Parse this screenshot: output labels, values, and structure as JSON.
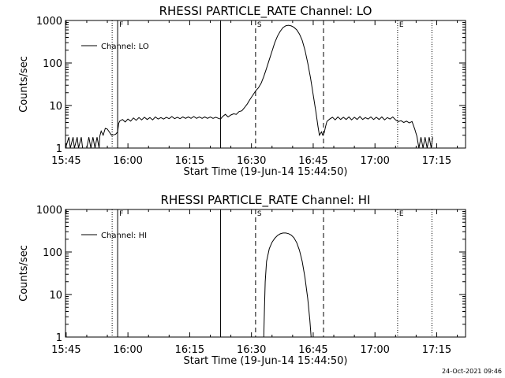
{
  "footer": {
    "timestamp": "24-Oct-2021 09:46"
  },
  "chart_data": [
    {
      "type": "line",
      "title": "RHESSI PARTICLE_RATE Channel: LO",
      "xlabel": "Start Time (19-Jun-14 15:44:50)",
      "ylabel": "Counts/sec",
      "yscale": "log",
      "ylim": [
        1,
        1000
      ],
      "xlim": [
        "15:44:50",
        "17:22:00"
      ],
      "x_ticks": [
        "15:45",
        "16:00",
        "16:15",
        "16:30",
        "16:45",
        "17:00",
        "17:15"
      ],
      "y_ticks": [
        "1",
        "10",
        "100",
        "1000"
      ],
      "legend": {
        "position": "top-left",
        "entries": [
          "Channel: LO"
        ]
      },
      "markers": [
        {
          "label": "F",
          "time": "15:57:30",
          "style": "solid"
        },
        {
          "label": "",
          "time": "16:22:30",
          "style": "solid"
        },
        {
          "label": "S",
          "time": "16:31:00",
          "style": "dashed"
        },
        {
          "label": "",
          "time": "16:47:30",
          "style": "dashed"
        },
        {
          "label": "E",
          "time": "17:05:30",
          "style": "dotted"
        },
        {
          "label": "",
          "time": "15:56:10",
          "style": "dotted"
        },
        {
          "label": "",
          "time": "17:13:50",
          "style": "dotted"
        }
      ],
      "series": [
        {
          "name": "Channel: LO",
          "points": [
            [
              "15:44:50",
              1.0
            ],
            [
              "15:45:40",
              1.8
            ],
            [
              "15:46:00",
              1.0
            ],
            [
              "15:46:40",
              1.8
            ],
            [
              "15:47:00",
              1.0
            ],
            [
              "15:47:40",
              1.8
            ],
            [
              "15:48:00",
              1.0
            ],
            [
              "15:48:40",
              1.8
            ],
            [
              "15:49:00",
              1.0
            ],
            [
              "15:50:00",
              1.0
            ],
            [
              "15:50:30",
              1.8
            ],
            [
              "15:51:00",
              1.0
            ],
            [
              "15:51:30",
              1.8
            ],
            [
              "15:52:00",
              1.0
            ],
            [
              "15:52:30",
              1.8
            ],
            [
              "15:53:00",
              1.0
            ],
            [
              "15:53:10",
              1.9
            ],
            [
              "15:53:30",
              2.5
            ],
            [
              "15:54:00",
              2.0
            ],
            [
              "15:54:30",
              2.9
            ],
            [
              "15:55:00",
              2.8
            ],
            [
              "15:56:00",
              2.0
            ],
            [
              "15:57:00",
              2.1
            ],
            [
              "15:57:30",
              2.4
            ],
            [
              "15:57:45",
              3.8
            ],
            [
              "15:58:00",
              4.3
            ],
            [
              "15:58:40",
              4.7
            ],
            [
              "15:59:20",
              4.1
            ],
            [
              "16:00:00",
              4.8
            ],
            [
              "16:00:40",
              4.3
            ],
            [
              "16:01:20",
              5.1
            ],
            [
              "16:02:00",
              4.5
            ],
            [
              "16:02:40",
              5.2
            ],
            [
              "16:03:20",
              4.6
            ],
            [
              "16:04:00",
              5.3
            ],
            [
              "16:04:40",
              4.7
            ],
            [
              "16:05:20",
              5.2
            ],
            [
              "16:06:00",
              4.6
            ],
            [
              "16:06:40",
              5.4
            ],
            [
              "16:07:20",
              4.8
            ],
            [
              "16:08:00",
              5.2
            ],
            [
              "16:08:40",
              4.8
            ],
            [
              "16:09:20",
              5.3
            ],
            [
              "16:10:00",
              4.9
            ],
            [
              "16:10:40",
              5.5
            ],
            [
              "16:11:20",
              4.9
            ],
            [
              "16:12:00",
              5.3
            ],
            [
              "16:12:40",
              4.9
            ],
            [
              "16:13:20",
              5.4
            ],
            [
              "16:14:00",
              5.0
            ],
            [
              "16:14:40",
              5.4
            ],
            [
              "16:15:20",
              5.0
            ],
            [
              "16:16:00",
              5.5
            ],
            [
              "16:16:40",
              5.0
            ],
            [
              "16:17:20",
              5.4
            ],
            [
              "16:18:00",
              5.0
            ],
            [
              "16:18:40",
              5.4
            ],
            [
              "16:19:20",
              5.0
            ],
            [
              "16:20:00",
              5.4
            ],
            [
              "16:20:40",
              5.0
            ],
            [
              "16:21:20",
              5.3
            ],
            [
              "16:22:00",
              5.0
            ],
            [
              "16:22:30",
              4.8
            ],
            [
              "16:23:00",
              5.5
            ],
            [
              "16:23:40",
              6.2
            ],
            [
              "16:24:20",
              5.4
            ],
            [
              "16:25:00",
              6.0
            ],
            [
              "16:25:40",
              6.4
            ],
            [
              "16:26:20",
              6.2
            ],
            [
              "16:27:00",
              7.2
            ],
            [
              "16:27:40",
              7.5
            ],
            [
              "16:28:20",
              9.0
            ],
            [
              "16:29:00",
              11.0
            ],
            [
              "16:29:40",
              14.0
            ],
            [
              "16:30:20",
              17.5
            ],
            [
              "16:31:00",
              22.0
            ],
            [
              "16:31:40",
              26.0
            ],
            [
              "16:32:20",
              33.0
            ],
            [
              "16:33:00",
              48.0
            ],
            [
              "16:33:40",
              75.0
            ],
            [
              "16:34:20",
              120.0
            ],
            [
              "16:35:00",
              190.0
            ],
            [
              "16:35:40",
              300.0
            ],
            [
              "16:36:20",
              430.0
            ],
            [
              "16:37:00",
              560.0
            ],
            [
              "16:37:40",
              680.0
            ],
            [
              "16:38:20",
              750.0
            ],
            [
              "16:39:00",
              770.0
            ],
            [
              "16:39:40",
              745.0
            ],
            [
              "16:40:20",
              690.0
            ],
            [
              "16:41:00",
              600.0
            ],
            [
              "16:41:40",
              480.0
            ],
            [
              "16:42:20",
              340.0
            ],
            [
              "16:43:00",
              200.0
            ],
            [
              "16:43:40",
              100.0
            ],
            [
              "16:44:20",
              45.0
            ],
            [
              "16:45:00",
              18.0
            ],
            [
              "16:45:40",
              7.0
            ],
            [
              "16:46:10",
              3.2
            ],
            [
              "16:46:30",
              2.0
            ],
            [
              "16:47:00",
              2.4
            ],
            [
              "16:47:20",
              2.0
            ],
            [
              "16:47:40",
              2.3
            ],
            [
              "16:48:00",
              3.2
            ],
            [
              "16:48:20",
              4.2
            ],
            [
              "16:49:00",
              4.8
            ],
            [
              "16:49:40",
              5.3
            ],
            [
              "16:50:20",
              4.6
            ],
            [
              "16:51:00",
              5.4
            ],
            [
              "16:51:40",
              4.7
            ],
            [
              "16:52:20",
              5.3
            ],
            [
              "16:53:00",
              4.7
            ],
            [
              "16:53:40",
              5.4
            ],
            [
              "16:54:20",
              4.6
            ],
            [
              "16:55:00",
              5.3
            ],
            [
              "16:55:40",
              4.7
            ],
            [
              "16:56:20",
              5.5
            ],
            [
              "16:57:00",
              4.7
            ],
            [
              "16:57:40",
              5.2
            ],
            [
              "16:58:20",
              4.8
            ],
            [
              "16:59:00",
              5.4
            ],
            [
              "16:59:40",
              4.7
            ],
            [
              "17:00:20",
              5.3
            ],
            [
              "17:01:00",
              4.7
            ],
            [
              "17:01:40",
              5.4
            ],
            [
              "17:02:20",
              4.6
            ],
            [
              "17:03:00",
              5.2
            ],
            [
              "17:03:40",
              4.8
            ],
            [
              "17:04:20",
              5.4
            ],
            [
              "17:05:00",
              4.6
            ],
            [
              "17:05:40",
              4.2
            ],
            [
              "17:06:20",
              4.4
            ],
            [
              "17:07:00",
              4.0
            ],
            [
              "17:07:40",
              4.3
            ],
            [
              "17:08:20",
              3.9
            ],
            [
              "17:09:00",
              4.2
            ],
            [
              "17:09:40",
              2.8
            ],
            [
              "17:10:10",
              1.9
            ],
            [
              "17:10:40",
              1.0
            ],
            [
              "17:11:10",
              1.8
            ],
            [
              "17:11:40",
              1.0
            ],
            [
              "17:12:10",
              1.8
            ],
            [
              "17:12:40",
              1.0
            ],
            [
              "17:13:10",
              1.8
            ],
            [
              "17:13:40",
              1.0
            ],
            [
              "17:14:00",
              1.8
            ]
          ]
        }
      ]
    },
    {
      "type": "line",
      "title": "RHESSI PARTICLE_RATE Channel: HI",
      "xlabel": "Start Time (19-Jun-14 15:44:50)",
      "ylabel": "Counts/sec",
      "yscale": "log",
      "ylim": [
        1,
        1000
      ],
      "xlim": [
        "15:44:50",
        "17:22:00"
      ],
      "x_ticks": [
        "15:45",
        "16:00",
        "16:15",
        "16:30",
        "16:45",
        "17:00",
        "17:15"
      ],
      "y_ticks": [
        "1",
        "10",
        "100",
        "1000"
      ],
      "legend": {
        "position": "top-left",
        "entries": [
          "Channel: HI"
        ]
      },
      "markers": [
        {
          "label": "F",
          "time": "15:57:30",
          "style": "solid"
        },
        {
          "label": "",
          "time": "16:22:30",
          "style": "solid"
        },
        {
          "label": "S",
          "time": "16:31:00",
          "style": "dashed"
        },
        {
          "label": "",
          "time": "16:47:30",
          "style": "dashed"
        },
        {
          "label": "E",
          "time": "17:05:30",
          "style": "dotted"
        },
        {
          "label": "",
          "time": "15:56:10",
          "style": "dotted"
        },
        {
          "label": "",
          "time": "17:13:50",
          "style": "dotted"
        }
      ],
      "series": [
        {
          "name": "Channel: HI",
          "points": [
            [
              "16:33:00",
              1.0
            ],
            [
              "16:33:10",
              5.0
            ],
            [
              "16:33:20",
              20.0
            ],
            [
              "16:33:40",
              60.0
            ],
            [
              "16:34:20",
              120.0
            ],
            [
              "16:35:00",
              170.0
            ],
            [
              "16:35:40",
              210.0
            ],
            [
              "16:36:20",
              245.0
            ],
            [
              "16:37:00",
              268.0
            ],
            [
              "16:37:40",
              280.0
            ],
            [
              "16:38:20",
              280.0
            ],
            [
              "16:39:00",
              270.0
            ],
            [
              "16:39:40",
              250.0
            ],
            [
              "16:40:20",
              215.0
            ],
            [
              "16:41:00",
              165.0
            ],
            [
              "16:41:40",
              110.0
            ],
            [
              "16:42:20",
              60.0
            ],
            [
              "16:43:00",
              25.0
            ],
            [
              "16:43:40",
              8.0
            ],
            [
              "16:44:10",
              2.6
            ],
            [
              "16:44:30",
              1.0
            ]
          ]
        }
      ]
    }
  ]
}
